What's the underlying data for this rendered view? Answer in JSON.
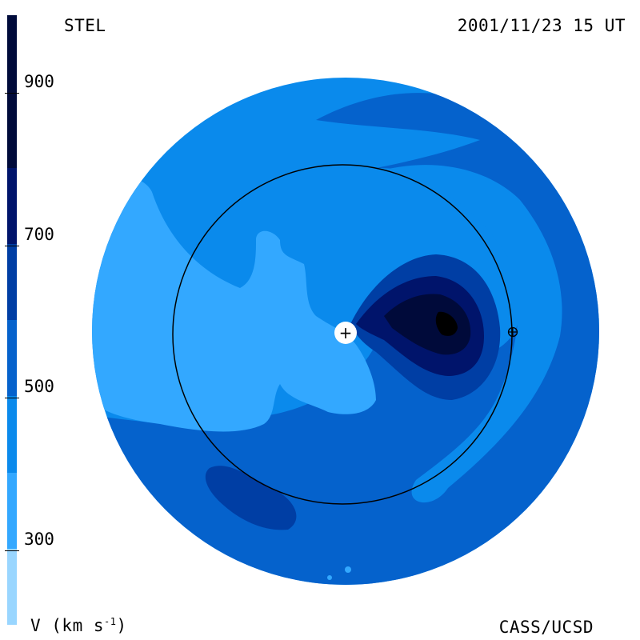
{
  "header": {
    "source": "STEL",
    "timestamp": "2001/11/23 15 UT"
  },
  "footer": {
    "unit_main": "V (km s",
    "unit_exp": "-1",
    "unit_close": ")",
    "credit": "CASS/UCSD"
  },
  "colorbar": {
    "ticks": [
      "900",
      "700",
      "500",
      "300"
    ],
    "tick_values": [
      900,
      700,
      500,
      300
    ],
    "levels": [
      {
        "from": 200,
        "to": 300,
        "color": "#99d6ff"
      },
      {
        "from": 300,
        "to": 400,
        "color": "#33a8ff"
      },
      {
        "from": 400,
        "to": 500,
        "color": "#0a8aec"
      },
      {
        "from": 500,
        "to": 600,
        "color": "#0562cc"
      },
      {
        "from": 600,
        "to": 700,
        "color": "#003ea4"
      },
      {
        "from": 700,
        "to": 800,
        "color": "#00146b"
      },
      {
        "from": 800,
        "to": 1000,
        "color": "#000a3a"
      }
    ],
    "range": [
      200,
      1000
    ]
  },
  "map": {
    "background_color": "#0a8aec",
    "sun_symbol": "+",
    "earth_symbol": "⊕"
  }
}
